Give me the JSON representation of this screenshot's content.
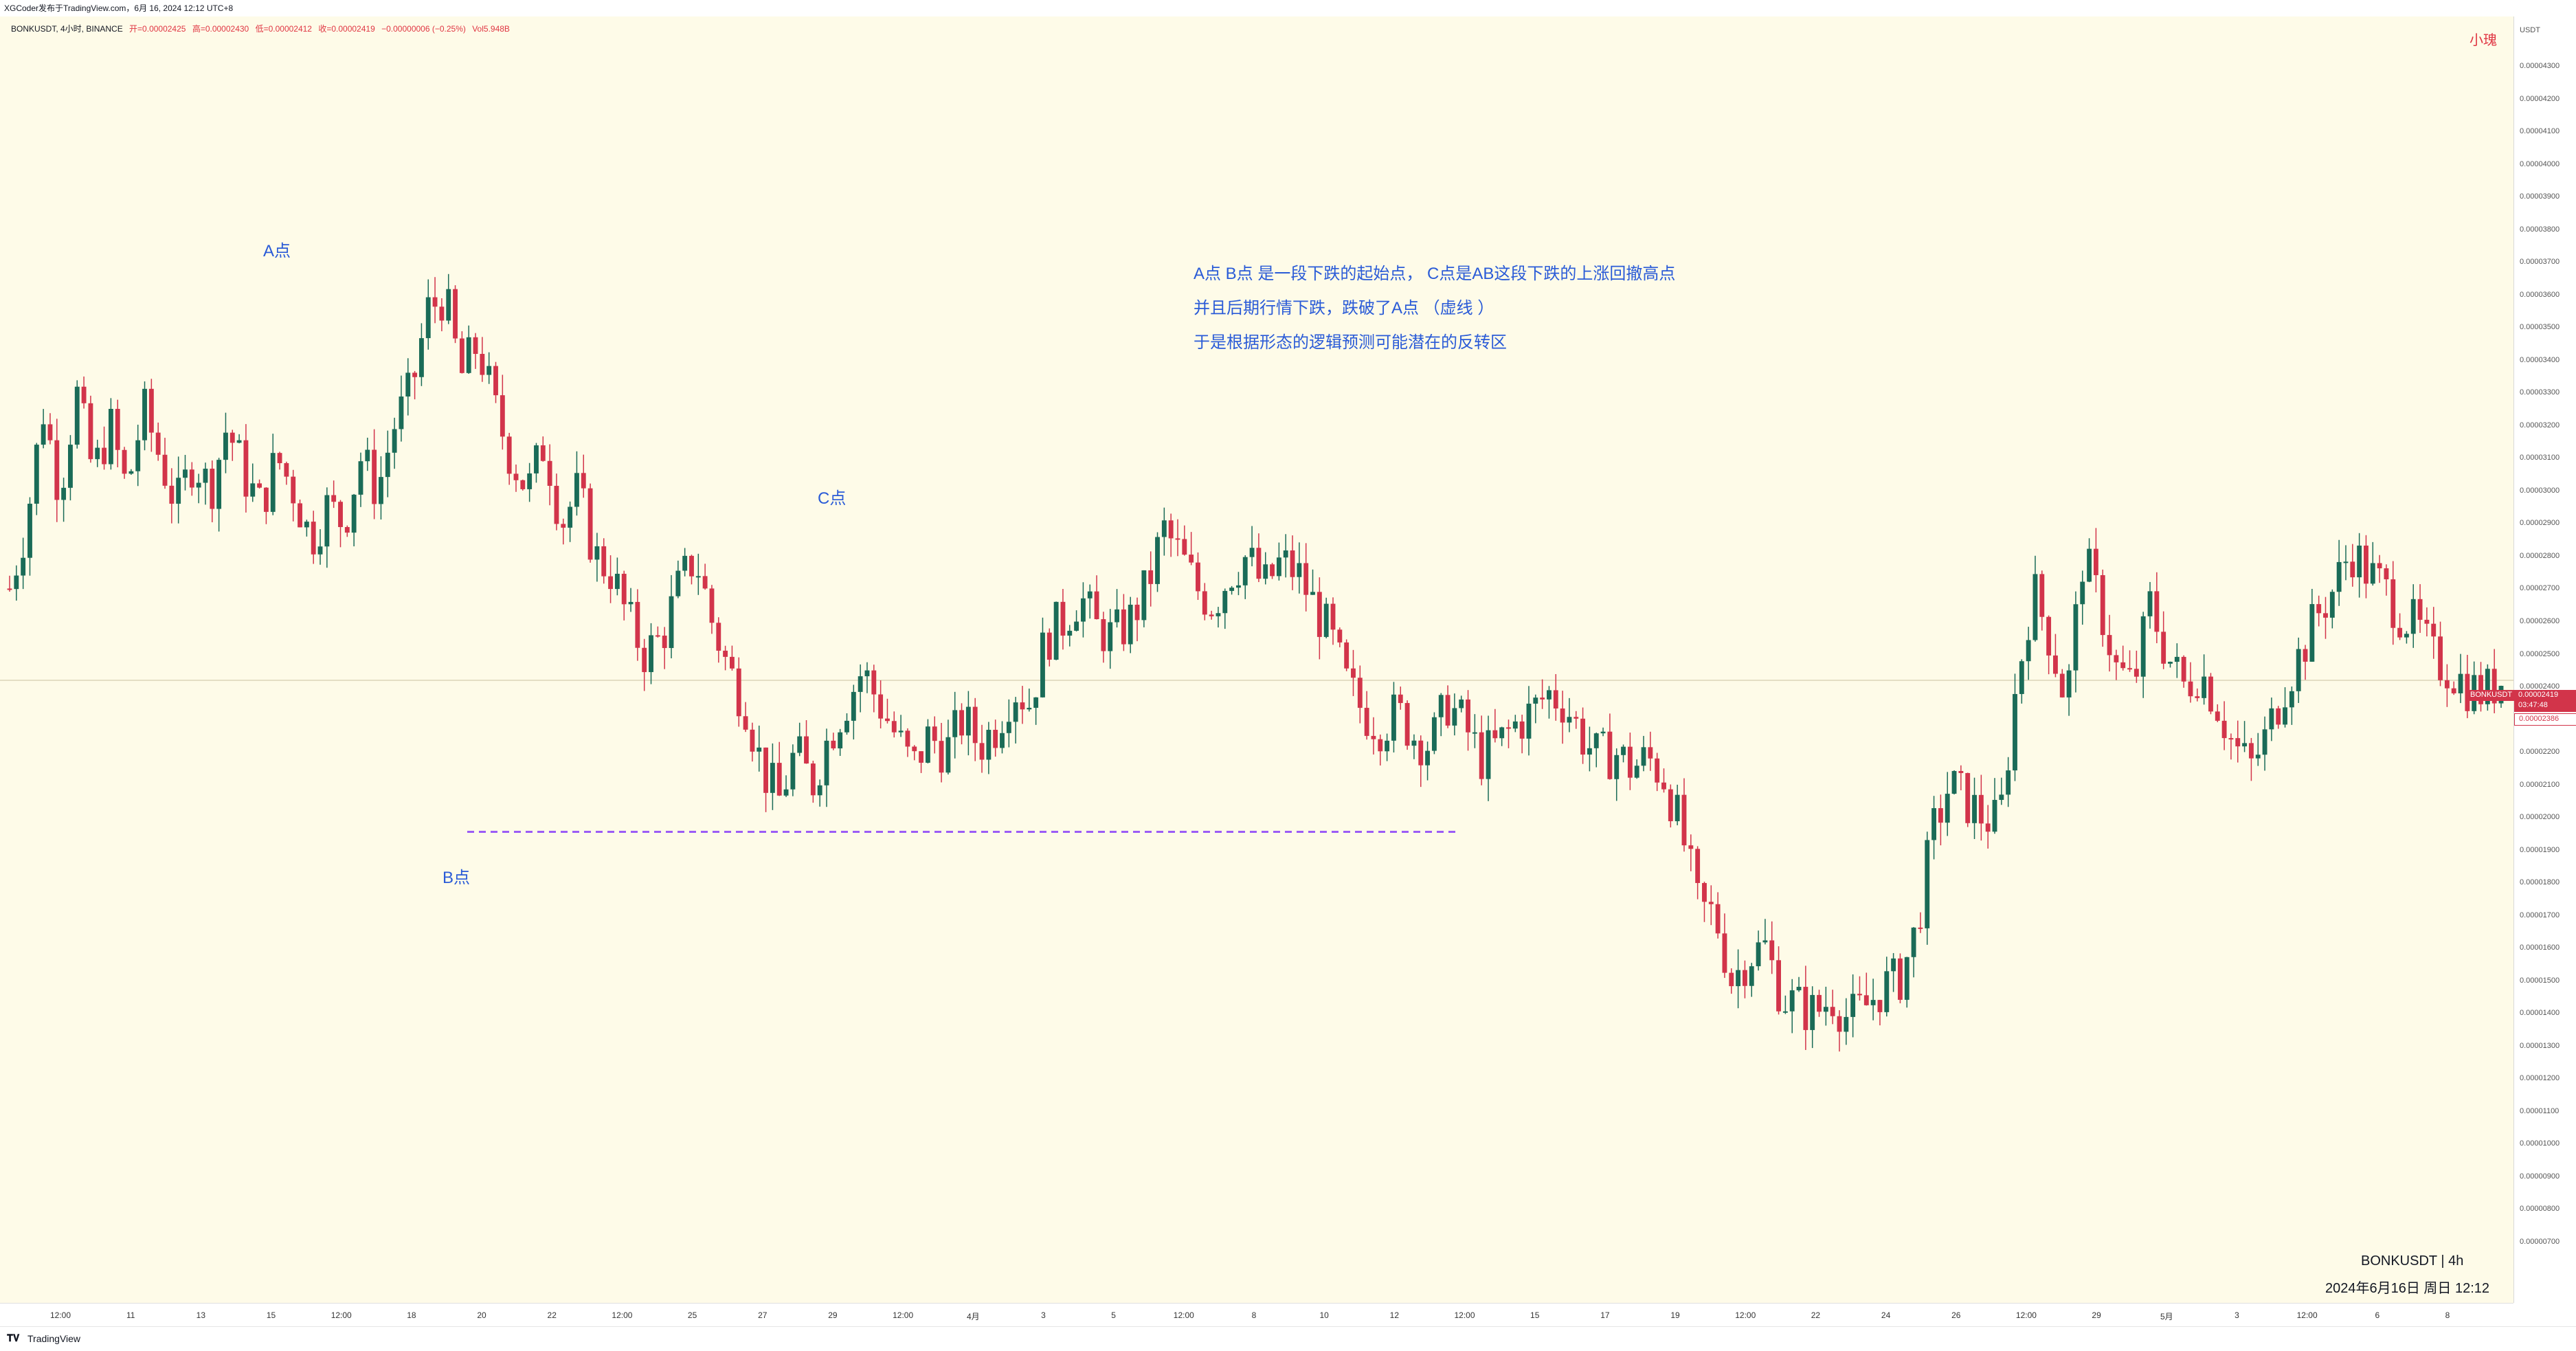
{
  "header": {
    "credit": "XGCoder发布于TradingView.com，6月 16, 2024 12:12 UTC+8"
  },
  "legend": {
    "symbol": "BONKUSDT, 4小时, BINANCE",
    "open": "开=0.00002425",
    "high": "高=0.00002430",
    "low": "低=0.00002412",
    "close": "收=0.00002419",
    "change": "−0.00000006 (−0.25%)",
    "volume": "Vol5.948B"
  },
  "corner_label": "小瑰",
  "price_axis": {
    "unit": "USDT",
    "ticks": [
      "0.00004300",
      "0.00004200",
      "0.00004100",
      "0.00004000",
      "0.00003900",
      "0.00003800",
      "0.00003700",
      "0.00003600",
      "0.00003500",
      "0.00003400",
      "0.00003300",
      "0.00003200",
      "0.00003100",
      "0.00003000",
      "0.00002900",
      "0.00002800",
      "0.00002700",
      "0.00002600",
      "0.00002500",
      "0.00002400",
      "0.00002300",
      "0.00002200",
      "0.00002100",
      "0.00002000",
      "0.00001900",
      "0.00001800",
      "0.00001700",
      "0.00001600",
      "0.00001500",
      "0.00001400",
      "0.00001300",
      "0.00001200",
      "0.00001100",
      "0.00001000",
      "0.00000900",
      "0.00000800",
      "0.00000700"
    ],
    "last_price_badge": {
      "symbol": "BONKUSDT",
      "price": "0.00002419",
      "countdown": "03:47:48",
      "prev_close": "0.00002386"
    }
  },
  "time_axis": {
    "ticks": [
      "12:00",
      "11",
      "13",
      "15",
      "12:00",
      "18",
      "20",
      "22",
      "12:00",
      "25",
      "27",
      "29",
      "12:00",
      "4月",
      "3",
      "5",
      "12:00",
      "8",
      "10",
      "12",
      "12:00",
      "15",
      "17",
      "19",
      "12:00",
      "22",
      "24",
      "26",
      "12:00",
      "29",
      "5月",
      "3",
      "12:00",
      "6",
      "8"
    ]
  },
  "annotations": {
    "point_a": "A点",
    "point_b": "B点",
    "point_c": "C点",
    "text_lines": [
      "A点    B点 是一段下跌的起始点，  C点是AB这段下跌的上涨回撤高点",
      "并且后期行情下跌，跌破了A点 （虚线 ）",
      "于是根据形态的逻辑预测可能潜在的反转区"
    ]
  },
  "watermark": {
    "symbol_tf": "BONKUSDT  |  4h",
    "datetime": "2024年6月16日 周日 12:12"
  },
  "footer": {
    "brand": "TradingView"
  },
  "colors": {
    "up": "#1a6b57",
    "down": "#d2344a",
    "background": "#fefbe8",
    "annotation": "#2a5bd7",
    "dashed_line": "#9b5cf5"
  },
  "chart_data": {
    "type": "candlestick",
    "symbol": "BONKUSDT",
    "interval": "4h",
    "ylim": [
      7e-06,
      4.3e-05
    ],
    "grid": false,
    "horizontal_level": 1.955e-05,
    "key_points": [
      {
        "label": "A点",
        "price": 3.67e-05
      },
      {
        "label": "B点",
        "price": 1.95e-05
      },
      {
        "label": "C点",
        "price": 2.94e-05
      }
    ],
    "path_prices": [
      2.7e-05,
      2.9e-05,
      3.25e-05,
      3e-05,
      3.3e-05,
      3.05e-05,
      3.2e-05,
      3e-05,
      3.25e-05,
      3.1e-05,
      2.95e-05,
      3.1e-05,
      3e-05,
      3.2e-05,
      3.05e-05,
      2.95e-05,
      3.1e-05,
      3e-05,
      2.85e-05,
      2.95e-05,
      2.9e-05,
      3.1e-05,
      3e-05,
      3.2e-05,
      3.3e-05,
      3.55e-05,
      3.6e-05,
      3.35e-05,
      3.45e-05,
      3.25e-05,
      3.1e-05,
      3e-05,
      3.15e-05,
      2.9e-05,
      3e-05,
      2.8e-05,
      2.75e-05,
      2.6e-05,
      2.5e-05,
      2.55e-05,
      2.7e-05,
      2.8e-05,
      2.6e-05,
      2.45e-05,
      2.35e-05,
      2.15e-05,
      2.05e-05,
      2.2e-05,
      2.1e-05,
      2.25e-05,
      2.35e-05,
      2.45e-05,
      2.35e-05,
      2.25e-05,
      2.15e-05,
      2.25e-05,
      2.2e-05,
      2.3e-05,
      2.22e-05,
      2.28e-05,
      2.4e-05,
      2.35e-05,
      2.55e-05,
      2.6e-05,
      2.68e-05,
      2.58e-05,
      2.55e-05,
      2.6e-05,
      2.7e-05,
      2.88e-05,
      2.8e-05,
      2.7e-05,
      2.65e-05,
      2.75e-05,
      2.8e-05,
      2.7e-05,
      2.78e-05,
      2.75e-05,
      2.65e-05,
      2.55e-05,
      2.4e-05,
      2.32e-05,
      2.28e-05,
      2.32e-05,
      2.25e-05,
      2.22e-05,
      2.35e-05,
      2.28e-05,
      2.18e-05,
      2.22e-05,
      2.28e-05,
      2.32e-05,
      2.38e-05,
      2.35e-05,
      2.25e-05,
      2.18e-05,
      2.2e-05,
      2.15e-05,
      2.18e-05,
      2.12e-05,
      1.95e-05,
      1.72e-05,
      1.7e-05,
      1.5e-05,
      1.58e-05,
      1.6e-05,
      1.45e-05,
      1.42e-05,
      1.4e-05,
      1.45e-05,
      1.38e-05,
      1.42e-05,
      1.48e-05,
      1.5e-05,
      1.65e-05,
      1.95e-05,
      2.1e-05,
      2.05e-05,
      2e-05,
      1.98e-05,
      2.4e-05,
      2.7e-05,
      2.55e-05,
      2.35e-05,
      2.8e-05,
      2.65e-05,
      2.45e-05,
      2.4e-05,
      2.65e-05,
      2.5e-05,
      2.4e-05,
      2.45e-05,
      2.35e-05,
      2.22e-05,
      2.15e-05,
      2.25e-05,
      2.4e-05,
      2.5e-05,
      2.62e-05,
      2.7e-05,
      2.82e-05,
      2.75e-05,
      2.7e-05,
      2.62e-05,
      2.58e-05,
      2.48e-05,
      2.45e-05,
      2.4e-05,
      2.38e-05,
      2.42e-05
    ]
  }
}
